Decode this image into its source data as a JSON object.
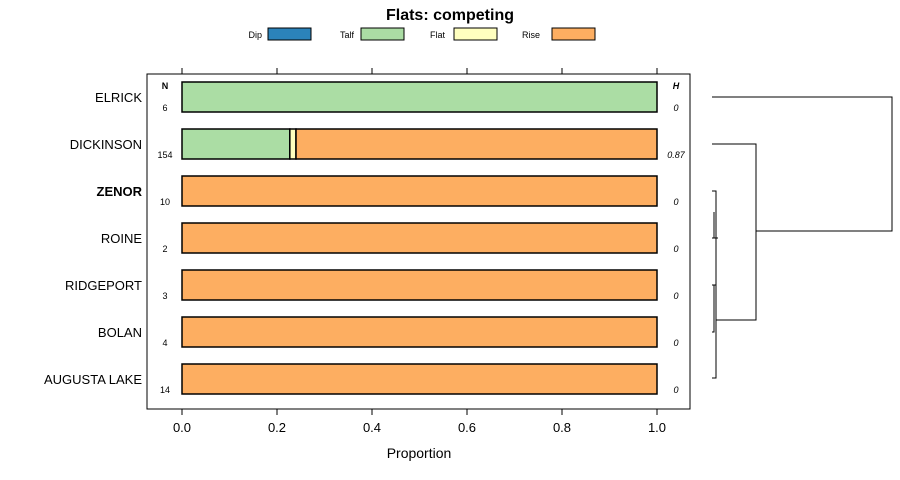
{
  "chart_data": {
    "type": "bar",
    "orientation": "horizontal",
    "stacked": true,
    "title": "Flats: competing",
    "xlabel": "Proportion",
    "ylabel": "",
    "xlim": [
      0,
      1
    ],
    "xticks": [
      "0.0",
      "0.2",
      "0.4",
      "0.6",
      "0.8",
      "1.0"
    ],
    "xtick_values": [
      0,
      0.2,
      0.4,
      0.6,
      0.8,
      1.0
    ],
    "legend": {
      "placement": "top",
      "entries": [
        {
          "name": "Dip",
          "color": "#2b83ba"
        },
        {
          "name": "Talf",
          "color": "#abdda4"
        },
        {
          "name": "Flat",
          "color": "#ffffbf"
        },
        {
          "name": "Rise",
          "color": "#fdae61"
        }
      ]
    },
    "n_header": "N",
    "h_header": "H",
    "categories": [
      "ELRICK",
      "DICKINSON",
      "ZENOR",
      "ROINE",
      "RIDGEPORT",
      "BOLAN",
      "AUGUSTA LAKE"
    ],
    "highlighted": "ZENOR",
    "n_values": [
      "6",
      "154",
      "10",
      "2",
      "3",
      "4",
      "14"
    ],
    "h_values": [
      "0",
      "0.87",
      "0",
      "0",
      "0",
      "0",
      "0"
    ],
    "series": [
      {
        "name": "Dip",
        "values": [
          0,
          0,
          0,
          0,
          0,
          0,
          0
        ]
      },
      {
        "name": "Talf",
        "values": [
          1.0,
          0.227,
          0,
          0,
          0,
          0,
          0
        ]
      },
      {
        "name": "Flat",
        "values": [
          0,
          0.013,
          0,
          0,
          0,
          0,
          0
        ]
      },
      {
        "name": "Rise",
        "values": [
          0,
          0.76,
          1.0,
          1.0,
          1.0,
          1.0,
          1.0
        ]
      }
    ],
    "dendrogram": true
  }
}
